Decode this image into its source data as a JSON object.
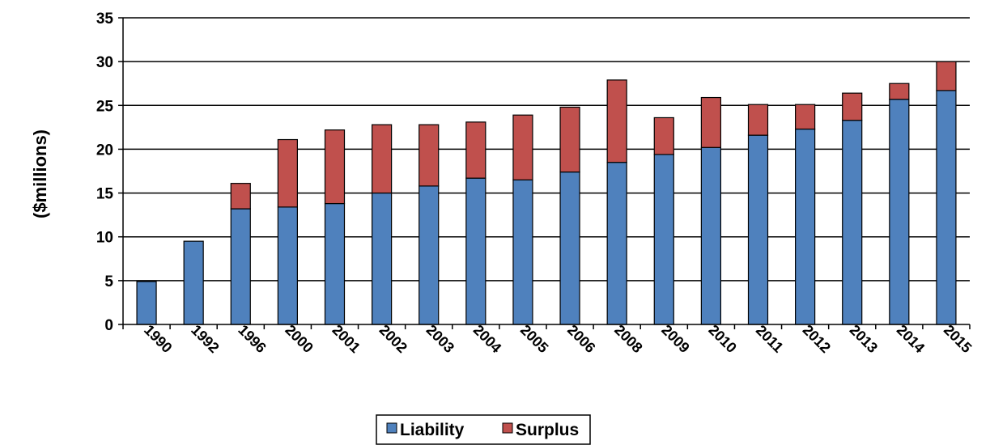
{
  "chart_data": {
    "type": "bar",
    "stacked": true,
    "ylabel": "($millions)",
    "xlabel": "",
    "ylim": [
      0,
      35
    ],
    "yticks": [
      0,
      5,
      10,
      15,
      20,
      25,
      30,
      35
    ],
    "grid": true,
    "legend_position": "bottom",
    "categories": [
      "1990",
      "1992",
      "1996",
      "2000",
      "2001",
      "2002",
      "2003",
      "2004",
      "2005",
      "2006",
      "2008",
      "2009",
      "2010",
      "2011",
      "2012",
      "2013",
      "2014",
      "2015"
    ],
    "series": [
      {
        "name": "Liability",
        "color": "#4f81bd",
        "values": [
          4.9,
          9.5,
          13.2,
          13.4,
          13.8,
          15.0,
          15.8,
          16.7,
          16.5,
          17.4,
          18.5,
          19.4,
          20.2,
          21.6,
          22.3,
          23.3,
          25.7,
          26.7
        ]
      },
      {
        "name": "Surplus",
        "color": "#c0504d",
        "values": [
          0,
          0,
          2.9,
          7.7,
          8.4,
          7.8,
          7.0,
          6.4,
          7.4,
          7.4,
          9.4,
          4.2,
          5.7,
          3.5,
          2.8,
          3.1,
          1.8,
          3.3
        ]
      }
    ]
  }
}
